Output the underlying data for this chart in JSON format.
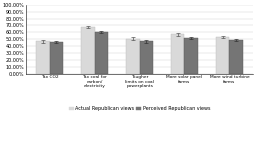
{
  "categories": [
    "Tax CO2",
    "Tax coal for\ncarbon/\nelectricity",
    "Tougher\nlimits on coal\npowerplants",
    "More solar panel\nfarms",
    "More wind turbine\nfarms"
  ],
  "actual_values": [
    0.47,
    0.68,
    0.51,
    0.57,
    0.53
  ],
  "perceived_values": [
    0.46,
    0.6,
    0.47,
    0.52,
    0.49
  ],
  "actual_errors": [
    0.018,
    0.018,
    0.02,
    0.018,
    0.015
  ],
  "perceived_errors": [
    0.015,
    0.015,
    0.018,
    0.015,
    0.013
  ],
  "actual_color": "#d9d9d9",
  "perceived_color": "#757575",
  "actual_label": "Actual Republican views",
  "perceived_label": "Perceived Republican views",
  "ylim": [
    0.0,
    1.0
  ],
  "yticks": [
    0.0,
    0.1,
    0.2,
    0.3,
    0.4,
    0.5,
    0.6,
    0.7,
    0.8,
    0.9,
    1.0
  ],
  "yticklabels": [
    "0.00%",
    "10.00%",
    "20.00%",
    "30.00%",
    "40.00%",
    "50.00%",
    "60.00%",
    "70.00%",
    "80.00%",
    "90.00%",
    "100.00%"
  ],
  "bar_width": 0.3,
  "figure_width": 2.56,
  "figure_height": 1.52,
  "dpi": 100,
  "tick_fontsize": 3.5,
  "label_fontsize": 3.2,
  "legend_fontsize": 3.5
}
